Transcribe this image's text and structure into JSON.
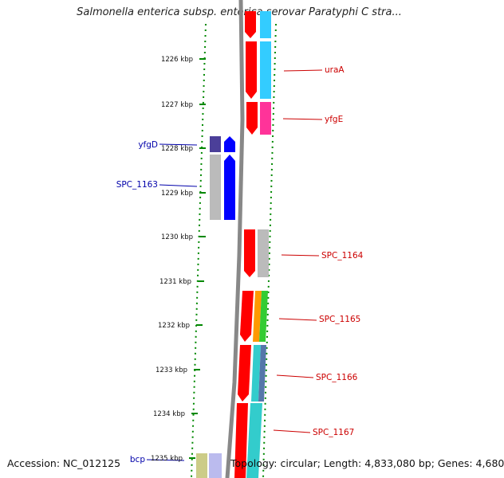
{
  "title": "Salmonella enterica subsp. enterica serovar Paratyphi C stra...",
  "footer": {
    "accession": "Accession: NC_012125",
    "topology": "Topology: circular; Length: 4,833,080 bp; Genes: 4,680"
  },
  "ruler": {
    "ticks": [
      "1226 kbp",
      "1227 kbp",
      "1228 kbp",
      "1229 kbp",
      "1230 kbp",
      "1231 kbp",
      "1232 kbp",
      "1233 kbp",
      "1234 kbp",
      "1235 kbp"
    ]
  },
  "genes": {
    "forward": [
      "uraA",
      "yfgE",
      "SPC_1164",
      "SPC_1165",
      "SPC_1166",
      "SPC_1167"
    ],
    "reverse": [
      "yfgD",
      "SPC_1163",
      "bcp"
    ]
  },
  "colors": {
    "forward_label": "#cc0000",
    "reverse_label": "#0000aa",
    "forward_gene": "#ff0000",
    "reverse_gene": "#0000ff",
    "cyan": "#33ccff",
    "magenta": "#ff3399",
    "gray": "#bbbbbb",
    "dark_blue": "#4b3f99",
    "orange": "#ff9900",
    "green": "#33cc33",
    "teal": "#33cccc",
    "steel": "#5577aa",
    "khaki": "#cccc88",
    "lavender": "#bbbbee",
    "ruler_dots": "#008800",
    "backbone": "#888888"
  }
}
